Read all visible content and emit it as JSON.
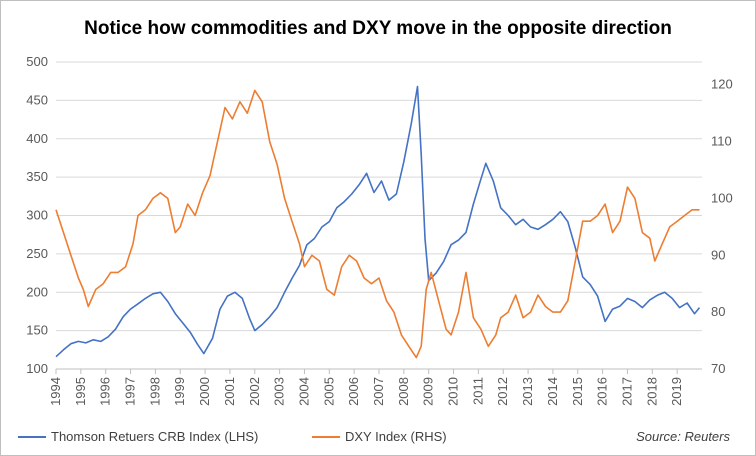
{
  "chart_data": {
    "type": "line",
    "title": "Notice how commodities and DXY move in the opposite direction",
    "source": "Source: Reuters",
    "x_ticks": [
      "1994",
      "1995",
      "1996",
      "1997",
      "1998",
      "1999",
      "2000",
      "2001",
      "2002",
      "2003",
      "2004",
      "2005",
      "2006",
      "2007",
      "2008",
      "2009",
      "2010",
      "2011",
      "2012",
      "2013",
      "2014",
      "2015",
      "2016",
      "2017",
      "2018",
      "2019"
    ],
    "y_left_ticks": [
      "100",
      "150",
      "200",
      "250",
      "300",
      "350",
      "400",
      "450",
      "500"
    ],
    "y_right_ticks": [
      "70",
      "80",
      "90",
      "100",
      "110",
      "120"
    ],
    "y_left_range": [
      100,
      500
    ],
    "y_right_range": [
      70,
      124
    ],
    "x_range": [
      1994,
      2020
    ],
    "grid": "horizontal",
    "legend": "bottom-left",
    "series": [
      {
        "name": "Thomson Retuers CRB Index (LHS)",
        "axis": "left",
        "color": "#4472C4",
        "points": [
          [
            1994,
            116
          ],
          [
            1994.3,
            125
          ],
          [
            1994.6,
            133
          ],
          [
            1994.9,
            136
          ],
          [
            1995.2,
            134
          ],
          [
            1995.5,
            138
          ],
          [
            1995.8,
            136
          ],
          [
            1996.1,
            142
          ],
          [
            1996.4,
            152
          ],
          [
            1996.7,
            168
          ],
          [
            1997.0,
            178
          ],
          [
            1997.3,
            185
          ],
          [
            1997.6,
            192
          ],
          [
            1997.9,
            198
          ],
          [
            1998.2,
            200
          ],
          [
            1998.5,
            188
          ],
          [
            1998.8,
            172
          ],
          [
            1999.1,
            160
          ],
          [
            1999.4,
            148
          ],
          [
            1999.7,
            132
          ],
          [
            1999.95,
            120
          ],
          [
            2000.3,
            140
          ],
          [
            2000.6,
            178
          ],
          [
            2000.9,
            195
          ],
          [
            2001.2,
            200
          ],
          [
            2001.5,
            192
          ],
          [
            2001.8,
            165
          ],
          [
            2002.0,
            150
          ],
          [
            2002.3,
            158
          ],
          [
            2002.6,
            168
          ],
          [
            2002.9,
            180
          ],
          [
            2003.2,
            200
          ],
          [
            2003.5,
            218
          ],
          [
            2003.8,
            235
          ],
          [
            2004.1,
            262
          ],
          [
            2004.4,
            270
          ],
          [
            2004.7,
            285
          ],
          [
            2005.0,
            292
          ],
          [
            2005.3,
            310
          ],
          [
            2005.6,
            318
          ],
          [
            2005.9,
            328
          ],
          [
            2006.2,
            340
          ],
          [
            2006.5,
            355
          ],
          [
            2006.8,
            330
          ],
          [
            2007.1,
            345
          ],
          [
            2007.4,
            320
          ],
          [
            2007.7,
            328
          ],
          [
            2008.0,
            370
          ],
          [
            2008.3,
            420
          ],
          [
            2008.55,
            468
          ],
          [
            2008.7,
            380
          ],
          [
            2008.85,
            270
          ],
          [
            2009.0,
            215
          ],
          [
            2009.3,
            225
          ],
          [
            2009.6,
            240
          ],
          [
            2009.9,
            262
          ],
          [
            2010.2,
            268
          ],
          [
            2010.5,
            278
          ],
          [
            2010.8,
            315
          ],
          [
            2011.05,
            342
          ],
          [
            2011.3,
            368
          ],
          [
            2011.6,
            345
          ],
          [
            2011.9,
            310
          ],
          [
            2012.2,
            300
          ],
          [
            2012.5,
            288
          ],
          [
            2012.8,
            295
          ],
          [
            2013.1,
            285
          ],
          [
            2013.4,
            282
          ],
          [
            2013.7,
            288
          ],
          [
            2014.0,
            295
          ],
          [
            2014.3,
            305
          ],
          [
            2014.6,
            292
          ],
          [
            2014.9,
            258
          ],
          [
            2015.2,
            220
          ],
          [
            2015.5,
            210
          ],
          [
            2015.8,
            195
          ],
          [
            2016.1,
            162
          ],
          [
            2016.4,
            178
          ],
          [
            2016.7,
            182
          ],
          [
            2017.0,
            192
          ],
          [
            2017.3,
            188
          ],
          [
            2017.6,
            180
          ],
          [
            2017.9,
            190
          ],
          [
            2018.2,
            196
          ],
          [
            2018.5,
            200
          ],
          [
            2018.8,
            192
          ],
          [
            2019.1,
            180
          ],
          [
            2019.4,
            186
          ],
          [
            2019.7,
            172
          ],
          [
            2019.9,
            180
          ]
        ]
      },
      {
        "name": "DXY Index (RHS)",
        "axis": "right",
        "color": "#ED7D31",
        "points": [
          [
            1994,
            98
          ],
          [
            1994.3,
            94
          ],
          [
            1994.6,
            90
          ],
          [
            1994.9,
            86
          ],
          [
            1995.1,
            84
          ],
          [
            1995.3,
            81
          ],
          [
            1995.6,
            84
          ],
          [
            1995.9,
            85
          ],
          [
            1996.2,
            87
          ],
          [
            1996.5,
            87
          ],
          [
            1996.8,
            88
          ],
          [
            1997.1,
            92
          ],
          [
            1997.3,
            97
          ],
          [
            1997.6,
            98
          ],
          [
            1997.9,
            100
          ],
          [
            1998.2,
            101
          ],
          [
            1998.5,
            100
          ],
          [
            1998.8,
            94
          ],
          [
            1999.0,
            95
          ],
          [
            1999.3,
            99
          ],
          [
            1999.6,
            97
          ],
          [
            1999.9,
            101
          ],
          [
            2000.2,
            104
          ],
          [
            2000.5,
            110
          ],
          [
            2000.8,
            116
          ],
          [
            2001.1,
            114
          ],
          [
            2001.4,
            117
          ],
          [
            2001.7,
            115
          ],
          [
            2002.0,
            119
          ],
          [
            2002.3,
            117
          ],
          [
            2002.6,
            110
          ],
          [
            2002.9,
            106
          ],
          [
            2003.2,
            100
          ],
          [
            2003.5,
            96
          ],
          [
            2003.8,
            92
          ],
          [
            2004.0,
            88
          ],
          [
            2004.3,
            90
          ],
          [
            2004.6,
            89
          ],
          [
            2004.9,
            84
          ],
          [
            2005.2,
            83
          ],
          [
            2005.5,
            88
          ],
          [
            2005.8,
            90
          ],
          [
            2006.1,
            89
          ],
          [
            2006.4,
            86
          ],
          [
            2006.7,
            85
          ],
          [
            2007.0,
            86
          ],
          [
            2007.3,
            82
          ],
          [
            2007.6,
            80
          ],
          [
            2007.9,
            76
          ],
          [
            2008.2,
            74
          ],
          [
            2008.5,
            72
          ],
          [
            2008.7,
            74
          ],
          [
            2008.9,
            84
          ],
          [
            2009.1,
            87
          ],
          [
            2009.4,
            82
          ],
          [
            2009.7,
            77
          ],
          [
            2009.9,
            76
          ],
          [
            2010.2,
            80
          ],
          [
            2010.5,
            87
          ],
          [
            2010.8,
            79
          ],
          [
            2011.1,
            77
          ],
          [
            2011.4,
            74
          ],
          [
            2011.7,
            76
          ],
          [
            2011.9,
            79
          ],
          [
            2012.2,
            80
          ],
          [
            2012.5,
            83
          ],
          [
            2012.8,
            79
          ],
          [
            2013.1,
            80
          ],
          [
            2013.4,
            83
          ],
          [
            2013.7,
            81
          ],
          [
            2014.0,
            80
          ],
          [
            2014.3,
            80
          ],
          [
            2014.6,
            82
          ],
          [
            2014.9,
            89
          ],
          [
            2015.2,
            96
          ],
          [
            2015.5,
            96
          ],
          [
            2015.8,
            97
          ],
          [
            2016.1,
            99
          ],
          [
            2016.4,
            94
          ],
          [
            2016.7,
            96
          ],
          [
            2017.0,
            102
          ],
          [
            2017.3,
            100
          ],
          [
            2017.6,
            94
          ],
          [
            2017.9,
            93
          ],
          [
            2018.1,
            89
          ],
          [
            2018.4,
            92
          ],
          [
            2018.7,
            95
          ],
          [
            2019.0,
            96
          ],
          [
            2019.3,
            97
          ],
          [
            2019.6,
            98
          ],
          [
            2019.9,
            98
          ]
        ]
      }
    ]
  }
}
